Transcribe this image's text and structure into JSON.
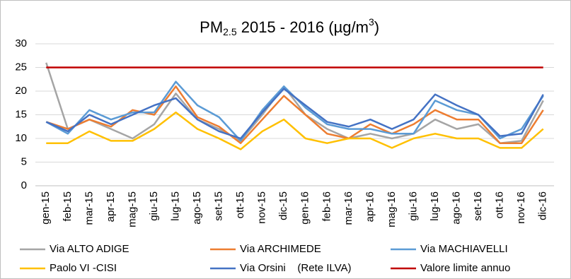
{
  "chart_data": {
    "type": "line",
    "title": [
      "PM",
      "2.5",
      " 2015 - 2016 (µg/m",
      "3",
      ")"
    ],
    "categories": [
      "gen-15",
      "feb-15",
      "mar-15",
      "apr-15",
      "mag-15",
      "giu-15",
      "lug-15",
      "ago-15",
      "set-15",
      "ott-15",
      "nov-15",
      "dic-15",
      "gen-16",
      "feb-16",
      "mar-16",
      "apr-16",
      "mag-16",
      "giu-16",
      "lug-16",
      "ago-16",
      "set-16",
      "ott-16",
      "nov-16",
      "dic-16"
    ],
    "series": [
      {
        "name": "Via ALTO ADIGE",
        "color": "#a5a5a5",
        "values": [
          26,
          12,
          14,
          12,
          10,
          13,
          19.5,
          14,
          12,
          9.5,
          15,
          21,
          15,
          12,
          10,
          11,
          10,
          11,
          14,
          12,
          13,
          9,
          9.5,
          18
        ]
      },
      {
        "name": "Via ARCHIMEDE",
        "color": "#ed7d31",
        "values": [
          13.5,
          12,
          14,
          12.5,
          16,
          15,
          21,
          14.5,
          12.5,
          9,
          14,
          19,
          15,
          11,
          10,
          13,
          11,
          13,
          16,
          14,
          14,
          9,
          9,
          16
        ]
      },
      {
        "name": "Via MACHIAVELLI",
        "color": "#5b9bd5",
        "values": [
          13.5,
          11,
          16,
          14,
          15.5,
          15.5,
          22,
          17,
          14.5,
          9.5,
          16,
          21,
          16.5,
          13,
          12,
          12,
          11,
          11,
          18,
          16,
          15,
          10,
          12,
          19
        ]
      },
      {
        "name": "Paolo VI -CISI",
        "color": "#ffc000",
        "values": [
          9,
          9,
          11.5,
          9.5,
          9.5,
          12,
          15.5,
          12,
          10,
          7.7,
          11.5,
          14,
          10,
          9,
          10,
          10,
          8,
          10,
          11,
          10,
          10,
          8,
          8,
          12
        ]
      },
      {
        "name": "Via Orsini    (Rete ILVA)",
        "color": "#4472c4",
        "values": [
          13.5,
          11.5,
          15,
          13,
          15,
          17,
          18.5,
          14,
          11.5,
          10,
          15.5,
          20.5,
          17,
          13.5,
          12.5,
          14,
          12,
          14,
          19.3,
          17,
          15,
          10.5,
          11,
          19.3
        ]
      },
      {
        "name": "Valore limite annuo",
        "color": "#c00000",
        "values": [
          25,
          25,
          25,
          25,
          25,
          25,
          25,
          25,
          25,
          25,
          25,
          25,
          25,
          25,
          25,
          25,
          25,
          25,
          25,
          25,
          25,
          25,
          25,
          25
        ]
      }
    ],
    "ylim": [
      0,
      30
    ],
    "yticks": [
      0,
      5,
      10,
      15,
      20,
      25,
      30
    ],
    "grid": true
  }
}
